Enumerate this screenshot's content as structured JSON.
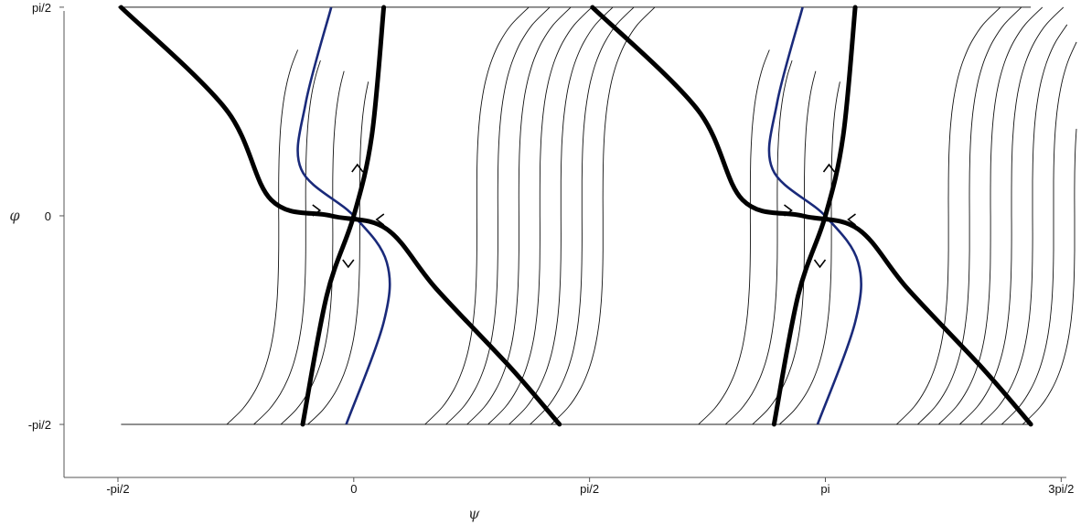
{
  "chart_data": {
    "type": "line",
    "title": "",
    "xlabel": "ψ",
    "ylabel": "φ",
    "xticks": [
      "-pi/2",
      "0",
      "pi/2",
      "pi",
      "3pi/2"
    ],
    "yticks": [
      "pi/2",
      "0",
      "-pi/2"
    ],
    "xlim": [
      -1.93,
      4.82
    ],
    "ylim": [
      -1.97,
      1.57
    ],
    "grid": false,
    "legend": "none",
    "colors": {
      "stable_manifold": "#000000",
      "nullcline": "#1a2a7a",
      "trajectory": "#111111"
    },
    "saddle_points": [
      [
        0,
        0
      ],
      [
        3.1416,
        0
      ]
    ],
    "separatrices": [
      {
        "name": "",
        "points": [
          [
            -1.55,
            1.57
          ],
          [
            -0.85,
            0.8
          ],
          [
            -0.55,
            0.12
          ],
          [
            -0.15,
            0.0
          ],
          [
            0.22,
            -0.1
          ],
          [
            0.55,
            -0.55
          ],
          [
            1.05,
            -1.15
          ],
          [
            1.37,
            -1.57
          ]
        ]
      },
      {
        "name": "",
        "points": [
          [
            -0.34,
            -1.57
          ],
          [
            -0.18,
            -0.6
          ],
          [
            0.0,
            0.0
          ],
          [
            0.12,
            0.6
          ],
          [
            0.2,
            1.57
          ]
        ]
      },
      {
        "name": "",
        "points": [
          [
            1.59,
            1.57
          ],
          [
            2.29,
            0.8
          ],
          [
            2.59,
            0.12
          ],
          [
            2.99,
            0.0
          ],
          [
            3.36,
            -0.1
          ],
          [
            3.69,
            -0.55
          ],
          [
            4.19,
            -1.15
          ],
          [
            4.51,
            -1.57
          ]
        ]
      },
      {
        "name": "",
        "points": [
          [
            2.8,
            -1.57
          ],
          [
            2.96,
            -0.6
          ],
          [
            3.1416,
            0.0
          ],
          [
            3.26,
            0.6
          ],
          [
            3.34,
            1.57
          ]
        ]
      }
    ],
    "nullclines": [
      {
        "name": "",
        "points": [
          [
            -0.05,
            -1.57
          ],
          [
            0.2,
            -0.8
          ],
          [
            0.22,
            -0.35
          ],
          [
            0.0,
            0.0
          ],
          [
            -0.35,
            0.35
          ],
          [
            -0.32,
            0.85
          ],
          [
            -0.15,
            1.57
          ]
        ]
      },
      {
        "name": "",
        "points": [
          [
            3.09,
            -1.57
          ],
          [
            3.34,
            -0.8
          ],
          [
            3.36,
            -0.35
          ],
          [
            3.14,
            0.0
          ],
          [
            2.79,
            0.35
          ],
          [
            2.82,
            0.85
          ],
          [
            2.99,
            1.57
          ]
        ]
      }
    ]
  }
}
